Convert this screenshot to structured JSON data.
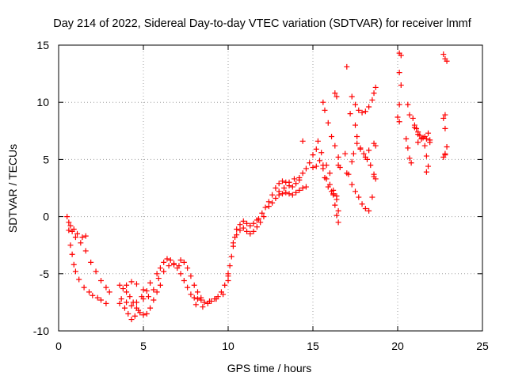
{
  "chart_data": {
    "type": "scatter",
    "title": "Day 214 of 2022, Sidereal Day-to-day VTEC variation (SDTVAR) for receiver lmmf",
    "xlabel": "GPS time / hours",
    "ylabel": "SDTVAR / TECUs",
    "xlim": [
      0,
      25
    ],
    "ylim": [
      -10,
      15
    ],
    "xticks": [
      0,
      5,
      10,
      15,
      20,
      25
    ],
    "yticks": [
      -10,
      -5,
      0,
      5,
      10,
      15
    ],
    "xtick_labels": [
      "0",
      "5",
      "10",
      "15",
      "20",
      "25"
    ],
    "ytick_labels": [
      "-10",
      "-5",
      "0",
      "5",
      "10",
      "15"
    ],
    "grid": true,
    "marker": "+",
    "color": "#ff0000",
    "series": [
      {
        "name": "SDTVAR",
        "points": [
          [
            0.5,
            0.0
          ],
          [
            0.6,
            -1.2
          ],
          [
            0.7,
            -2.5
          ],
          [
            0.8,
            -3.3
          ],
          [
            0.9,
            -4.2
          ],
          [
            1.0,
            -4.8
          ],
          [
            1.2,
            -5.5
          ],
          [
            1.5,
            -6.2
          ],
          [
            1.8,
            -6.6
          ],
          [
            2.0,
            -6.9
          ],
          [
            2.3,
            -7.1
          ],
          [
            2.5,
            -7.3
          ],
          [
            2.8,
            -7.6
          ],
          [
            0.6,
            -0.5
          ],
          [
            0.8,
            -1.3
          ],
          [
            1.0,
            -1.8
          ],
          [
            1.3,
            -2.3
          ],
          [
            1.6,
            -3.0
          ],
          [
            1.9,
            -4.0
          ],
          [
            2.2,
            -4.8
          ],
          [
            2.5,
            -5.6
          ],
          [
            2.8,
            -6.2
          ],
          [
            3.0,
            -6.6
          ],
          [
            0.7,
            -0.8
          ],
          [
            0.9,
            -1.1
          ],
          [
            1.1,
            -1.5
          ],
          [
            1.4,
            -1.8
          ],
          [
            1.6,
            -1.7
          ],
          [
            3.6,
            -6.0
          ],
          [
            3.8,
            -6.3
          ],
          [
            4.0,
            -6.6
          ],
          [
            4.2,
            -7.0
          ],
          [
            4.4,
            -7.5
          ],
          [
            4.6,
            -8.0
          ],
          [
            4.8,
            -8.4
          ],
          [
            5.0,
            -8.6
          ],
          [
            5.2,
            -8.5
          ],
          [
            5.4,
            -8.0
          ],
          [
            5.6,
            -7.3
          ],
          [
            5.8,
            -6.6
          ],
          [
            6.0,
            -6.0
          ],
          [
            3.9,
            -8.0
          ],
          [
            4.1,
            -8.5
          ],
          [
            4.3,
            -9.0
          ],
          [
            4.5,
            -8.7
          ],
          [
            4.7,
            -8.2
          ],
          [
            3.7,
            -7.2
          ],
          [
            4.0,
            -7.5
          ],
          [
            4.3,
            -7.8
          ],
          [
            4.6,
            -7.5
          ],
          [
            4.9,
            -7.0
          ],
          [
            5.2,
            -6.5
          ],
          [
            3.6,
            -7.6
          ],
          [
            4.0,
            -6.0
          ],
          [
            4.3,
            -5.7
          ],
          [
            4.6,
            -5.9
          ],
          [
            5.0,
            -6.4
          ],
          [
            5.4,
            -5.8
          ],
          [
            5.0,
            -7.2
          ],
          [
            5.3,
            -7.0
          ],
          [
            5.6,
            -6.4
          ],
          [
            5.9,
            -5.4
          ],
          [
            6.2,
            -4.8
          ],
          [
            6.5,
            -4.3
          ],
          [
            6.8,
            -4.2
          ],
          [
            7.1,
            -4.3
          ],
          [
            5.8,
            -5.0
          ],
          [
            6.0,
            -4.5
          ],
          [
            6.2,
            -4.0
          ],
          [
            6.4,
            -3.7
          ],
          [
            6.6,
            -3.8
          ],
          [
            6.8,
            -4.1
          ],
          [
            7.0,
            -4.5
          ],
          [
            7.2,
            -5.0
          ],
          [
            7.4,
            -5.6
          ],
          [
            7.6,
            -6.2
          ],
          [
            7.8,
            -6.8
          ],
          [
            8.0,
            -7.1
          ],
          [
            8.2,
            -7.2
          ],
          [
            8.4,
            -7.3
          ],
          [
            7.2,
            -3.8
          ],
          [
            7.4,
            -4.0
          ],
          [
            7.6,
            -4.5
          ],
          [
            7.8,
            -5.2
          ],
          [
            8.0,
            -6.0
          ],
          [
            8.2,
            -6.6
          ],
          [
            8.4,
            -7.1
          ],
          [
            8.6,
            -7.5
          ],
          [
            8.8,
            -7.6
          ],
          [
            9.0,
            -7.4
          ],
          [
            9.2,
            -7.2
          ],
          [
            9.4,
            -7.0
          ],
          [
            9.6,
            -6.6
          ],
          [
            9.8,
            -6.0
          ],
          [
            10.0,
            -5.2
          ],
          [
            8.1,
            -7.7
          ],
          [
            8.5,
            -7.9
          ],
          [
            8.9,
            -7.4
          ],
          [
            9.3,
            -7.2
          ],
          [
            9.7,
            -6.8
          ],
          [
            10.0,
            -5.6
          ],
          [
            10.0,
            -5.0
          ],
          [
            10.1,
            -4.3
          ],
          [
            10.2,
            -3.5
          ],
          [
            10.3,
            -2.6
          ],
          [
            10.4,
            -1.8
          ],
          [
            10.5,
            -1.1
          ],
          [
            10.7,
            -0.7
          ],
          [
            10.9,
            -0.4
          ],
          [
            11.1,
            -0.6
          ],
          [
            11.3,
            -0.8
          ],
          [
            11.5,
            -0.6
          ],
          [
            11.7,
            -0.3
          ],
          [
            10.3,
            -2.3
          ],
          [
            10.5,
            -1.6
          ],
          [
            10.7,
            -1.2
          ],
          [
            10.9,
            -1.0
          ],
          [
            11.1,
            -1.3
          ],
          [
            11.3,
            -1.5
          ],
          [
            11.5,
            -1.3
          ],
          [
            11.7,
            -0.9
          ],
          [
            11.9,
            -0.5
          ],
          [
            12.1,
            0.0
          ],
          [
            11.8,
            -0.2
          ],
          [
            12.0,
            0.3
          ],
          [
            12.2,
            0.8
          ],
          [
            12.4,
            1.3
          ],
          [
            12.6,
            1.9
          ],
          [
            12.8,
            2.5
          ],
          [
            13.0,
            2.9
          ],
          [
            13.2,
            3.1
          ],
          [
            13.4,
            3.0
          ],
          [
            13.6,
            2.7
          ],
          [
            13.8,
            2.6
          ],
          [
            14.0,
            2.9
          ],
          [
            14.2,
            3.4
          ],
          [
            14.4,
            3.8
          ],
          [
            14.6,
            4.2
          ],
          [
            14.8,
            4.7
          ],
          [
            15.0,
            5.4
          ],
          [
            12.4,
            0.9
          ],
          [
            12.6,
            1.2
          ],
          [
            12.8,
            1.6
          ],
          [
            13.0,
            1.9
          ],
          [
            13.2,
            2.0
          ],
          [
            13.4,
            2.1
          ],
          [
            13.6,
            2.0
          ],
          [
            13.8,
            1.9
          ],
          [
            14.0,
            2.1
          ],
          [
            14.2,
            2.3
          ],
          [
            14.4,
            2.5
          ],
          [
            14.6,
            2.6
          ],
          [
            13.0,
            2.2
          ],
          [
            13.3,
            2.5
          ],
          [
            13.6,
            3.0
          ],
          [
            13.9,
            3.3
          ],
          [
            14.2,
            3.2
          ],
          [
            14.4,
            6.6
          ],
          [
            15.0,
            4.3
          ],
          [
            15.2,
            5.9
          ],
          [
            15.3,
            6.6
          ],
          [
            15.5,
            5.6
          ],
          [
            15.6,
            4.5
          ],
          [
            15.7,
            3.4
          ],
          [
            15.9,
            2.6
          ],
          [
            16.1,
            2.2
          ],
          [
            16.2,
            1.9
          ],
          [
            16.4,
            1.8
          ],
          [
            15.2,
            4.4
          ],
          [
            15.4,
            4.9
          ],
          [
            15.6,
            4.2
          ],
          [
            15.8,
            3.3
          ],
          [
            16.0,
            2.8
          ],
          [
            16.2,
            2.3
          ],
          [
            16.4,
            1.5
          ],
          [
            16.5,
            0.5
          ],
          [
            15.6,
            10.0
          ],
          [
            15.7,
            9.3
          ],
          [
            15.9,
            8.2
          ],
          [
            16.1,
            7.0
          ],
          [
            16.3,
            6.2
          ],
          [
            16.5,
            5.2
          ],
          [
            16.6,
            4.3
          ],
          [
            15.8,
            4.5
          ],
          [
            16.0,
            3.8
          ],
          [
            16.2,
            2.0
          ],
          [
            16.3,
            1.0
          ],
          [
            16.4,
            0.1
          ],
          [
            16.5,
            -0.5
          ],
          [
            16.3,
            10.8
          ],
          [
            16.4,
            10.5
          ],
          [
            16.5,
            4.5
          ],
          [
            17.0,
            13.1
          ],
          [
            16.9,
            5.5
          ],
          [
            17.0,
            3.8
          ],
          [
            17.1,
            3.7
          ],
          [
            17.3,
            10.5
          ],
          [
            17.5,
            8.0
          ],
          [
            17.6,
            7.0
          ],
          [
            17.8,
            6.0
          ],
          [
            18.0,
            5.5
          ],
          [
            18.2,
            5.0
          ],
          [
            18.4,
            4.5
          ],
          [
            18.6,
            3.7
          ],
          [
            18.7,
            3.3
          ],
          [
            17.5,
            9.8
          ],
          [
            17.7,
            9.3
          ],
          [
            17.9,
            9.1
          ],
          [
            18.1,
            9.2
          ],
          [
            18.3,
            9.6
          ],
          [
            18.5,
            10.2
          ],
          [
            18.6,
            10.8
          ],
          [
            18.7,
            11.3
          ],
          [
            17.3,
            2.8
          ],
          [
            17.5,
            2.2
          ],
          [
            17.7,
            1.7
          ],
          [
            17.9,
            1.1
          ],
          [
            18.1,
            0.7
          ],
          [
            18.3,
            0.5
          ],
          [
            18.5,
            1.7
          ],
          [
            18.6,
            3.5
          ],
          [
            18.7,
            6.2
          ],
          [
            17.6,
            6.4
          ],
          [
            17.8,
            5.9
          ],
          [
            18.1,
            5.2
          ],
          [
            18.3,
            5.8
          ],
          [
            18.6,
            6.4
          ],
          [
            17.3,
            4.8
          ],
          [
            17.4,
            5.5
          ],
          [
            17.2,
            9.0
          ],
          [
            20.1,
            14.3
          ],
          [
            20.2,
            14.1
          ],
          [
            20.1,
            12.6
          ],
          [
            20.2,
            11.5
          ],
          [
            20.1,
            9.8
          ],
          [
            20.0,
            8.7
          ],
          [
            20.1,
            8.3
          ],
          [
            20.5,
            6.8
          ],
          [
            20.6,
            6.0
          ],
          [
            20.7,
            5.1
          ],
          [
            20.8,
            4.7
          ],
          [
            20.6,
            9.8
          ],
          [
            20.7,
            8.9
          ],
          [
            20.9,
            8.6
          ],
          [
            21.0,
            8.0
          ],
          [
            21.1,
            7.7
          ],
          [
            21.2,
            7.4
          ],
          [
            21.3,
            7.1
          ],
          [
            21.5,
            6.9
          ],
          [
            21.7,
            6.8
          ],
          [
            21.9,
            6.7
          ],
          [
            21.0,
            7.8
          ],
          [
            21.2,
            7.2
          ],
          [
            21.4,
            6.8
          ],
          [
            21.6,
            6.2
          ],
          [
            21.7,
            5.3
          ],
          [
            21.8,
            4.4
          ],
          [
            21.7,
            3.9
          ],
          [
            21.2,
            6.5
          ],
          [
            21.4,
            6.8
          ],
          [
            21.6,
            7.0
          ],
          [
            21.8,
            7.3
          ],
          [
            21.9,
            6.5
          ],
          [
            22.7,
            14.2
          ],
          [
            22.8,
            13.8
          ],
          [
            22.9,
            13.6
          ],
          [
            22.8,
            8.9
          ],
          [
            22.7,
            8.6
          ],
          [
            22.8,
            7.7
          ],
          [
            22.9,
            6.1
          ],
          [
            22.8,
            5.5
          ],
          [
            22.7,
            5.2
          ],
          [
            22.8,
            5.4
          ]
        ]
      }
    ]
  }
}
